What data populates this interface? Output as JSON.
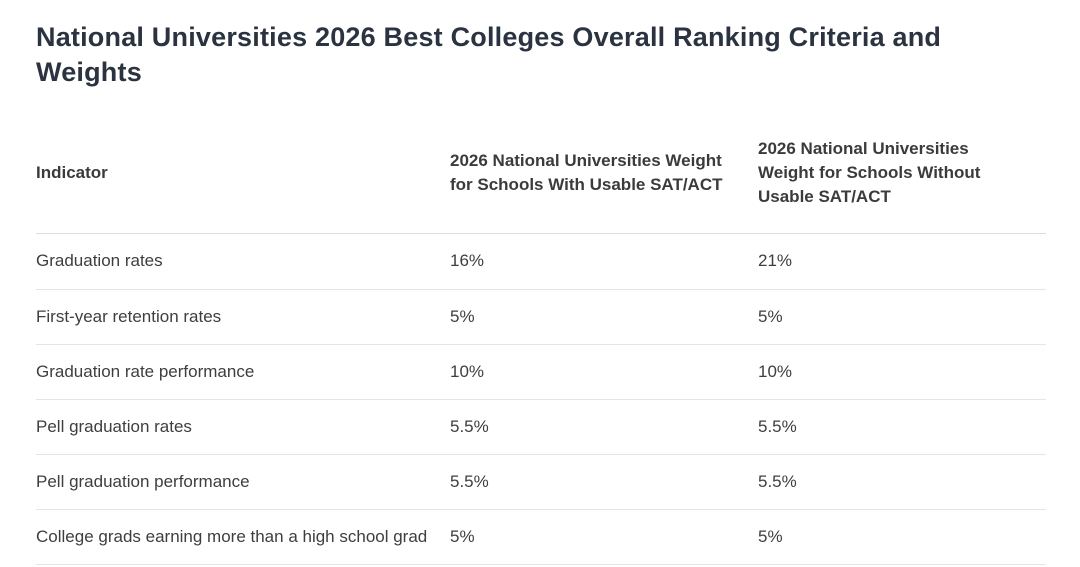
{
  "title": "National Universities 2026 Best Colleges Overall Ranking Criteria and Weights",
  "colors": {
    "background": "#ffffff",
    "title_text": "#2b3340",
    "body_text": "#3e3e3e",
    "header_divider": "#d9dce0",
    "row_divider": "#e5e5e5"
  },
  "table": {
    "columns": [
      "Indicator",
      "2026 National Universities Weight for Schools With Usable SAT/ACT",
      "2026 National Universities Weight for Schools Without Usable SAT/ACT"
    ],
    "rows": [
      {
        "indicator": "Graduation rates",
        "with_sat_act": "16%",
        "without_sat_act": "21%"
      },
      {
        "indicator": "First-year retention rates",
        "with_sat_act": "5%",
        "without_sat_act": "5%"
      },
      {
        "indicator": "Graduation rate performance",
        "with_sat_act": "10%",
        "without_sat_act": "10%"
      },
      {
        "indicator": "Pell graduation rates",
        "with_sat_act": "5.5%",
        "without_sat_act": "5.5%"
      },
      {
        "indicator": "Pell graduation performance",
        "with_sat_act": "5.5%",
        "without_sat_act": "5.5%"
      },
      {
        "indicator": "College grads earning more than a high school grad",
        "with_sat_act": "5%",
        "without_sat_act": "5%"
      }
    ]
  },
  "chart_data": {
    "type": "table",
    "title": "National Universities 2026 Best Colleges Overall Ranking Criteria and Weights",
    "columns": [
      "Indicator",
      "2026 National Universities Weight for Schools With Usable SAT/ACT",
      "2026 National Universities Weight for Schools Without Usable SAT/ACT"
    ],
    "rows": [
      [
        "Graduation rates",
        "16%",
        "21%"
      ],
      [
        "First-year retention rates",
        "5%",
        "5%"
      ],
      [
        "Graduation rate performance",
        "10%",
        "10%"
      ],
      [
        "Pell graduation rates",
        "5.5%",
        "5.5%"
      ],
      [
        "Pell graduation performance",
        "5.5%",
        "5.5%"
      ],
      [
        "College grads earning more than a high school grad",
        "5%",
        "5%"
      ]
    ]
  }
}
